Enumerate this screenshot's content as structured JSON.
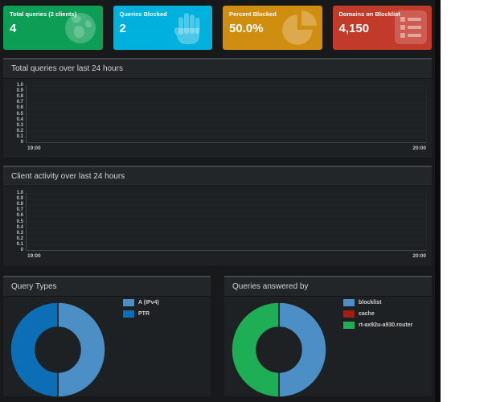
{
  "cards": [
    {
      "title": "Total queries (2 clients)",
      "value": "4",
      "color": "#0d9e56",
      "icon": "globe-icon"
    },
    {
      "title": "Queries Blocked",
      "value": "2",
      "color": "#00b1dd",
      "icon": "hand-icon"
    },
    {
      "title": "Percent Blocked",
      "value": "50.0%",
      "color": "#d08e10",
      "icon": "pie-chart-icon"
    },
    {
      "title": "Domains on Blocklist",
      "value": "4,150",
      "color": "#c13a2a",
      "icon": "list-icon"
    }
  ],
  "panels": {
    "total_queries": {
      "title": "Total queries over last 24 hours"
    },
    "client_activity": {
      "title": "Client activity over last 24 hours"
    },
    "query_types": {
      "title": "Query Types"
    },
    "answered_by": {
      "title": "Queries answered by"
    }
  },
  "theme": {
    "page_bg": "#17191b",
    "panel_bg": "#1e2123",
    "panel_header_bg": "#232628",
    "text": "#d3d3d3"
  },
  "chart_data": [
    {
      "type": "line",
      "title": "Total queries over last 24 hours",
      "x_ticks": [
        "19:00",
        "20:00"
      ],
      "y_ticks": [
        "1.0",
        "0.9",
        "0.8",
        "0.7",
        "0.6",
        "0.5",
        "0.4",
        "0.3",
        "0.2",
        "0.1",
        "0"
      ],
      "ylim": [
        0,
        1.0
      ],
      "grid": true,
      "legend_position": "none",
      "series": []
    },
    {
      "type": "line",
      "title": "Client activity over last 24 hours",
      "x_ticks": [
        "19:00",
        "20:00"
      ],
      "y_ticks": [
        "1.0",
        "0.9",
        "0.8",
        "0.7",
        "0.6",
        "0.5",
        "0.4",
        "0.3",
        "0.2",
        "0.1",
        "0"
      ],
      "ylim": [
        0,
        1.0
      ],
      "grid": true,
      "legend_position": "none",
      "series": []
    },
    {
      "type": "pie",
      "donut": true,
      "title": "Query Types",
      "legend_position": "right",
      "labels": [
        "A (IPv4)",
        "PTR"
      ],
      "values": [
        50,
        50
      ],
      "colors": [
        "#4b8fc6",
        "#0c6eb5"
      ]
    },
    {
      "type": "pie",
      "donut": true,
      "title": "Queries answered by",
      "legend_position": "right",
      "labels": [
        "blocklist",
        "cache",
        "rt-ax92u-a930.router"
      ],
      "values": [
        50,
        0,
        50
      ],
      "colors": [
        "#4b8fc6",
        "#a31d10",
        "#1eae55"
      ]
    }
  ]
}
